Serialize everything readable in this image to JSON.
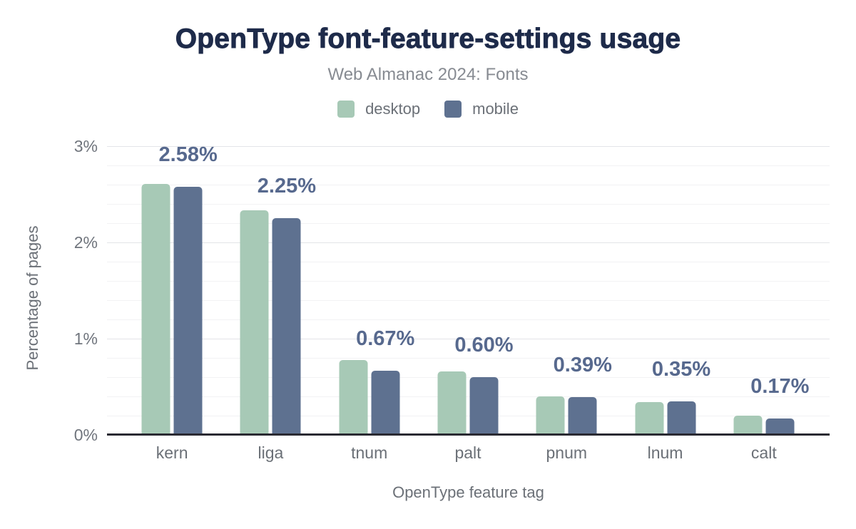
{
  "figure": {
    "title": "OpenType font-feature-settings usage",
    "subtitle": "Web Almanac 2024: Fonts"
  },
  "legend": {
    "items": [
      {
        "label": "desktop",
        "color": "#a7c9b6"
      },
      {
        "label": "mobile",
        "color": "#5e7190"
      }
    ]
  },
  "chart_data": {
    "type": "bar",
    "title": "OpenType font-feature-settings usage",
    "subtitle": "Web Almanac 2024: Fonts",
    "xlabel": "OpenType feature tag",
    "ylabel": "Percentage of pages",
    "categories": [
      "kern",
      "liga",
      "tnum",
      "palt",
      "pnum",
      "lnum",
      "calt"
    ],
    "series": [
      {
        "name": "desktop",
        "color": "#a7c9b6",
        "values": [
          2.61,
          2.33,
          0.78,
          0.66,
          0.4,
          0.34,
          0.2
        ]
      },
      {
        "name": "mobile",
        "color": "#5e7190",
        "values": [
          2.58,
          2.25,
          0.67,
          0.6,
          0.39,
          0.35,
          0.17
        ]
      }
    ],
    "data_labels": [
      "2.58%",
      "2.25%",
      "0.67%",
      "0.60%",
      "0.39%",
      "0.35%",
      "0.17%"
    ],
    "data_labels_series": "mobile",
    "ylim": [
      0,
      3
    ],
    "yticks": [
      {
        "value": 3,
        "label": "3%"
      },
      {
        "value": 2,
        "label": "2%"
      },
      {
        "value": 1,
        "label": "1%"
      },
      {
        "value": 0,
        "label": "0%"
      }
    ],
    "grid": {
      "major_step": 1,
      "minor_step": 0.2,
      "legend_position": "top"
    },
    "colors": {
      "title": "#1e2b4a",
      "subtitle": "#878b92",
      "data_label": "#57698e",
      "axis_line": "#2a2a32",
      "tick_text": "#6b7077",
      "gridline_major": "#e3e4e8",
      "gridline_minor": "#f2f2f4"
    }
  }
}
